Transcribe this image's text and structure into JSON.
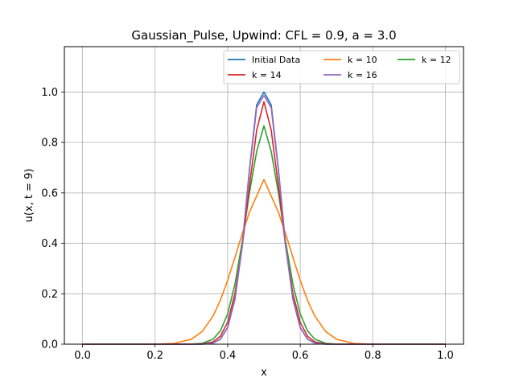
{
  "chart_data": {
    "type": "line",
    "title": "Gaussian_Pulse, Upwind: CFL = 0.9, a = 3.0",
    "xlabel": "x",
    "ylabel": "u(x, t = 9)",
    "xlim": [
      -0.05,
      1.05
    ],
    "ylim": [
      0.0,
      1.18
    ],
    "xticks": [
      0.0,
      0.2,
      0.4,
      0.6,
      0.8,
      1.0
    ],
    "xtick_labels": [
      "0.0",
      "0.2",
      "0.4",
      "0.6",
      "0.8",
      "1.0"
    ],
    "yticks": [
      0.0,
      0.2,
      0.4,
      0.6,
      0.8,
      1.0
    ],
    "ytick_labels": [
      "0.0",
      "0.2",
      "0.4",
      "0.6",
      "0.8",
      "1.0"
    ],
    "grid": true,
    "legend_position": "top-right",
    "legend_columns": 3,
    "x": [
      0.0,
      0.05,
      0.1,
      0.15,
      0.2,
      0.25,
      0.3,
      0.33,
      0.36,
      0.38,
      0.4,
      0.42,
      0.44,
      0.46,
      0.48,
      0.5,
      0.52,
      0.54,
      0.56,
      0.58,
      0.6,
      0.62,
      0.64,
      0.67,
      0.7,
      0.75,
      0.8,
      0.85,
      0.9,
      0.95,
      1.0
    ],
    "series": [
      {
        "name": "Initial Data",
        "color": "#1f77b4",
        "values": [
          0.0,
          0.0,
          0.0,
          0.0,
          0.0,
          0.0,
          0.0,
          0.0003,
          0.0048,
          0.0198,
          0.0657,
          0.1775,
          0.3889,
          0.6921,
          0.9493,
          1.0,
          0.9493,
          0.6921,
          0.3889,
          0.1775,
          0.0657,
          0.0198,
          0.0048,
          0.0003,
          0.0,
          0.0,
          0.0,
          0.0,
          0.0,
          0.0,
          0.0
        ]
      },
      {
        "name": "k = 10",
        "color": "#ff7f0e",
        "values": [
          0.0,
          0.0,
          0.0,
          0.0,
          0.0002,
          0.0025,
          0.0197,
          0.0505,
          0.1122,
          0.1743,
          0.2531,
          0.3437,
          0.4375,
          0.5232,
          0.5877,
          0.6528,
          0.5877,
          0.5232,
          0.4375,
          0.3437,
          0.2531,
          0.1743,
          0.1122,
          0.0505,
          0.0197,
          0.0025,
          0.0002,
          0.0,
          0.0,
          0.0,
          0.0
        ]
      },
      {
        "name": "k = 12",
        "color": "#2ca02c",
        "values": [
          0.0,
          0.0,
          0.0,
          0.0,
          0.0,
          0.0,
          0.0004,
          0.0036,
          0.0204,
          0.0528,
          0.1201,
          0.2369,
          0.4048,
          0.5996,
          0.7645,
          0.866,
          0.7645,
          0.5996,
          0.4048,
          0.2369,
          0.1201,
          0.0528,
          0.0204,
          0.0036,
          0.0004,
          0.0,
          0.0,
          0.0,
          0.0,
          0.0,
          0.0
        ]
      },
      {
        "name": "k = 14",
        "color": "#d62728",
        "values": [
          0.0,
          0.0,
          0.0,
          0.0,
          0.0,
          0.0,
          0.0,
          0.0009,
          0.0094,
          0.0314,
          0.0868,
          0.2003,
          0.3848,
          0.6267,
          0.8487,
          0.9615,
          0.8487,
          0.6267,
          0.3848,
          0.2003,
          0.0868,
          0.0314,
          0.0094,
          0.0009,
          0.0,
          0.0,
          0.0,
          0.0,
          0.0,
          0.0,
          0.0
        ]
      },
      {
        "name": "k = 16",
        "color": "#9467bd",
        "values": [
          0.0,
          0.0,
          0.0,
          0.0,
          0.0,
          0.0,
          0.0,
          0.0003,
          0.005,
          0.0201,
          0.0667,
          0.1787,
          0.3887,
          0.6884,
          0.9381,
          0.9865,
          0.9381,
          0.6884,
          0.3887,
          0.1787,
          0.0667,
          0.0201,
          0.005,
          0.0003,
          0.0,
          0.0,
          0.0,
          0.0,
          0.0,
          0.0,
          0.0
        ]
      }
    ]
  }
}
